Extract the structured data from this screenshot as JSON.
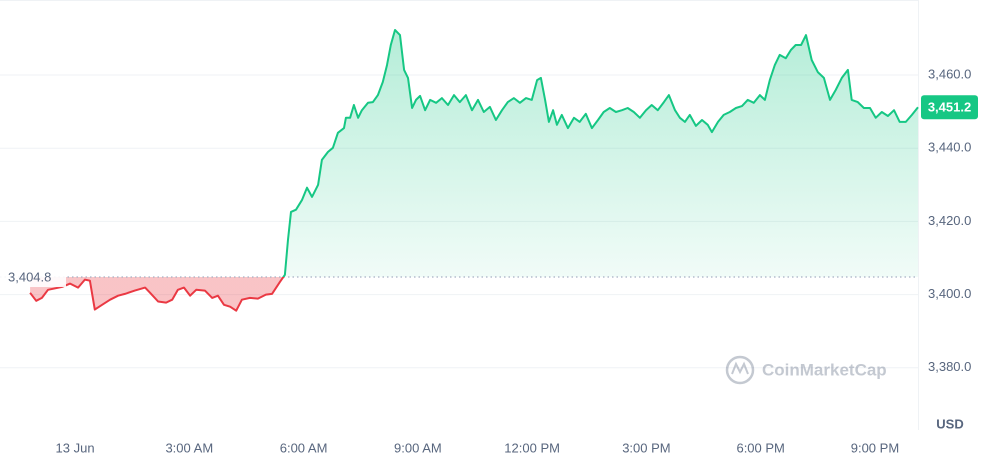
{
  "chart_data": {
    "type": "line",
    "x": [
      -1.18,
      -1.02,
      -0.87,
      -0.71,
      -0.34,
      -0.13,
      0.08,
      0.26,
      0.39,
      0.52,
      0.71,
      0.92,
      1.13,
      1.31,
      1.57,
      1.84,
      1.97,
      2.18,
      2.39,
      2.55,
      2.7,
      2.86,
      3.02,
      3.18,
      3.41,
      3.6,
      3.75,
      3.91,
      4.07,
      4.23,
      4.38,
      4.59,
      4.8,
      5.01,
      5.17,
      5.38,
      5.51,
      5.59,
      5.67,
      5.8,
      5.96,
      6.09,
      6.22,
      6.38,
      6.48,
      6.64,
      6.77,
      6.9,
      7.06,
      7.11,
      7.22,
      7.32,
      7.43,
      7.53,
      7.69,
      7.82,
      7.95,
      8.08,
      8.19,
      8.29,
      8.4,
      8.53,
      8.64,
      8.74,
      8.85,
      8.95,
      9.06,
      9.19,
      9.32,
      9.48,
      9.63,
      9.79,
      9.95,
      10.1,
      10.26,
      10.42,
      10.58,
      10.73,
      10.89,
      11.05,
      11.21,
      11.36,
      11.52,
      11.68,
      11.84,
      11.99,
      12.13,
      12.23,
      12.34,
      12.44,
      12.55,
      12.65,
      12.78,
      12.94,
      13.1,
      13.25,
      13.41,
      13.57,
      13.73,
      13.88,
      14.04,
      14.2,
      14.36,
      14.51,
      14.67,
      14.83,
      14.99,
      15.14,
      15.3,
      15.46,
      15.59,
      15.75,
      15.88,
      16.01,
      16.14,
      16.3,
      16.46,
      16.61,
      16.72,
      16.88,
      17.03,
      17.19,
      17.35,
      17.51,
      17.66,
      17.82,
      17.98,
      18.11,
      18.24,
      18.37,
      18.5,
      18.66,
      18.79,
      18.92,
      19.06,
      19.19,
      19.34,
      19.5,
      19.66,
      19.82,
      19.97,
      20.13,
      20.29,
      20.39,
      20.55,
      20.71,
      20.87,
      21.02,
      21.18,
      21.34,
      21.5,
      21.65,
      21.81,
      21.97,
      22.13
    ],
    "series": [
      {
        "color": "#16c784",
        "below_color": "#ea3943",
        "values": [
          3400.5,
          3398.3,
          3399.1,
          3401.3,
          3402.1,
          3403.0,
          3401.9,
          3404.1,
          3403.8,
          3395.9,
          3397.2,
          3398.6,
          3399.7,
          3400.2,
          3401.1,
          3401.9,
          3400.5,
          3398.1,
          3397.8,
          3398.6,
          3401.3,
          3401.9,
          3399.7,
          3401.3,
          3401.1,
          3399.1,
          3399.7,
          3397.2,
          3396.7,
          3395.6,
          3398.6,
          3399.1,
          3398.9,
          3400.0,
          3400.2,
          3403.5,
          3405.4,
          3415.0,
          3422.6,
          3423.2,
          3425.9,
          3429.2,
          3426.7,
          3430.0,
          3436.8,
          3439.0,
          3440.1,
          3444.2,
          3445.5,
          3448.3,
          3448.3,
          3451.8,
          3448.3,
          3450.4,
          3452.4,
          3452.6,
          3454.5,
          3458.1,
          3462.7,
          3468.2,
          3472.3,
          3470.9,
          3461.4,
          3459.2,
          3451.0,
          3453.2,
          3454.3,
          3450.4,
          3453.2,
          3452.4,
          3453.7,
          3451.8,
          3454.5,
          3452.6,
          3454.5,
          3450.4,
          3453.2,
          3449.9,
          3451.3,
          3447.7,
          3450.4,
          3452.6,
          3453.7,
          3452.4,
          3453.7,
          3453.2,
          3458.6,
          3459.2,
          3453.2,
          3447.2,
          3450.4,
          3446.4,
          3449.1,
          3445.5,
          3448.3,
          3447.2,
          3449.4,
          3445.5,
          3447.7,
          3449.9,
          3451.0,
          3449.9,
          3450.4,
          3451.0,
          3449.9,
          3448.3,
          3450.4,
          3451.8,
          3450.4,
          3452.6,
          3454.5,
          3450.4,
          3448.3,
          3447.2,
          3449.1,
          3446.1,
          3447.7,
          3446.4,
          3444.4,
          3447.2,
          3449.1,
          3449.9,
          3451.0,
          3451.5,
          3453.2,
          3452.4,
          3454.5,
          3453.2,
          3458.6,
          3462.7,
          3465.5,
          3464.6,
          3466.8,
          3468.2,
          3468.2,
          3470.9,
          3464.1,
          3460.8,
          3459.2,
          3453.2,
          3455.9,
          3459.2,
          3461.4,
          3453.2,
          3452.6,
          3451.0,
          3451.0,
          3448.3,
          3449.9,
          3448.8,
          3450.4,
          3447.2,
          3447.2,
          3449.1,
          3451.2
        ]
      }
    ],
    "xlim": [
      -1.97,
      22.13
    ],
    "xticks": [
      {
        "value": 0,
        "label": "13 Jun"
      },
      {
        "value": 3,
        "label": "3:00 AM"
      },
      {
        "value": 6,
        "label": "6:00 AM"
      },
      {
        "value": 9,
        "label": "9:00 AM"
      },
      {
        "value": 12,
        "label": "12:00 PM"
      },
      {
        "value": 15,
        "label": "3:00 PM"
      },
      {
        "value": 18,
        "label": "6:00 PM"
      },
      {
        "value": 21,
        "label": "9:00 PM"
      }
    ],
    "ylim": [
      3363,
      3480.5
    ],
    "yticks": [
      {
        "value": 3460,
        "label": "3,460.0"
      },
      {
        "value": 3440,
        "label": "3,440.0"
      },
      {
        "value": 3420,
        "label": "3,420.0"
      },
      {
        "value": 3400,
        "label": "3,400.0"
      },
      {
        "value": 3380,
        "label": "3,380.0"
      }
    ],
    "grid": true,
    "reference_price": {
      "value": 3404.8,
      "label": "3,404.8"
    },
    "current_price": {
      "value": 3451.2,
      "label": "3,451.2"
    },
    "y_unit": "USD",
    "watermark": "CoinMarketCap"
  }
}
